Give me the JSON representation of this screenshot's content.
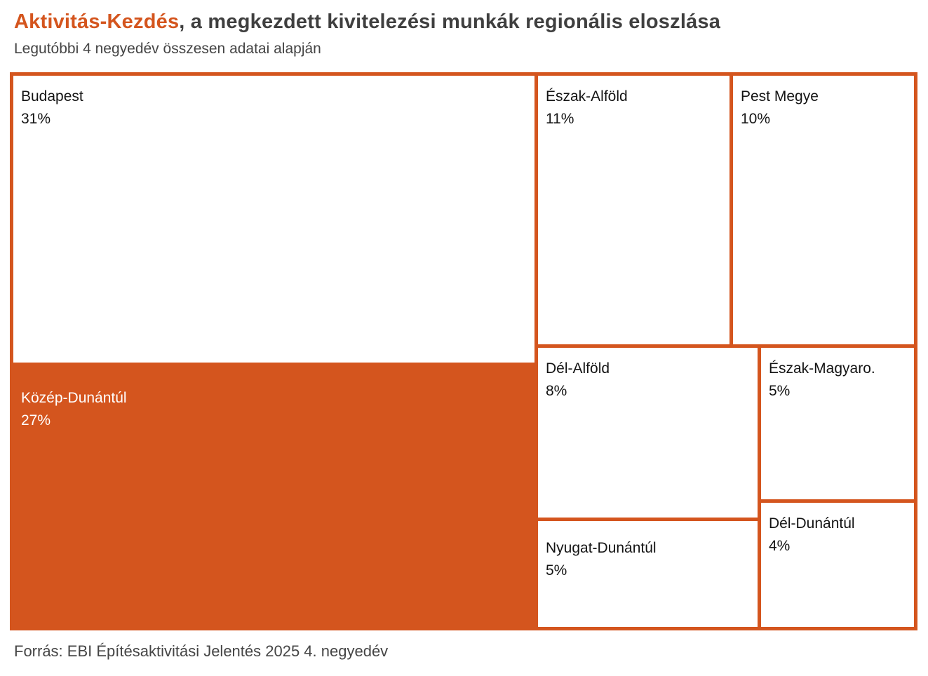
{
  "header": {
    "title_highlight": "Aktivitás-Kezdés",
    "title_rest": ", a megkezdett kivitelezési munkák regionális eloszlása",
    "subtitle": "Legutóbbi 4 negyedév összesen adatai alapján"
  },
  "footer": {
    "source": "Forrás: EBI Építésaktivitási Jelentés 2025 4. negyedév"
  },
  "colors": {
    "accent": "#D4551E",
    "title_text": "#3F3F3F",
    "tile_text": "#141414",
    "highlighted_tile_text": "#FFFFFF"
  },
  "chart_data": {
    "type": "treemap",
    "title": "Aktivitás-Kezdés, a megkezdett kivitelezési munkák regionális eloszlása",
    "subtitle": "Legutóbbi 4 negyedév összesen adatai alapján",
    "source": "Forrás: EBI Építésaktivitási Jelentés 2025 4. negyedév",
    "unit": "percent",
    "legend": "none",
    "regions": [
      {
        "name": "Budapest",
        "value": 31,
        "label": "31%",
        "highlighted": false
      },
      {
        "name": "Közép-Dunántúl",
        "value": 27,
        "label": "27%",
        "highlighted": true
      },
      {
        "name": "Észak-Alföld",
        "value": 11,
        "label": "11%",
        "highlighted": false
      },
      {
        "name": "Pest Megye",
        "value": 10,
        "label": "10%",
        "highlighted": false
      },
      {
        "name": "Dél-Alföld",
        "value": 8,
        "label": "8%",
        "highlighted": false
      },
      {
        "name": "Észak-Magyaro.",
        "value": 5,
        "label": "5%",
        "highlighted": false
      },
      {
        "name": "Nyugat-Dunántúl",
        "value": 5,
        "label": "5%",
        "highlighted": false
      },
      {
        "name": "Dél-Dunántúl",
        "value": 4,
        "label": "4%",
        "highlighted": false
      }
    ]
  }
}
